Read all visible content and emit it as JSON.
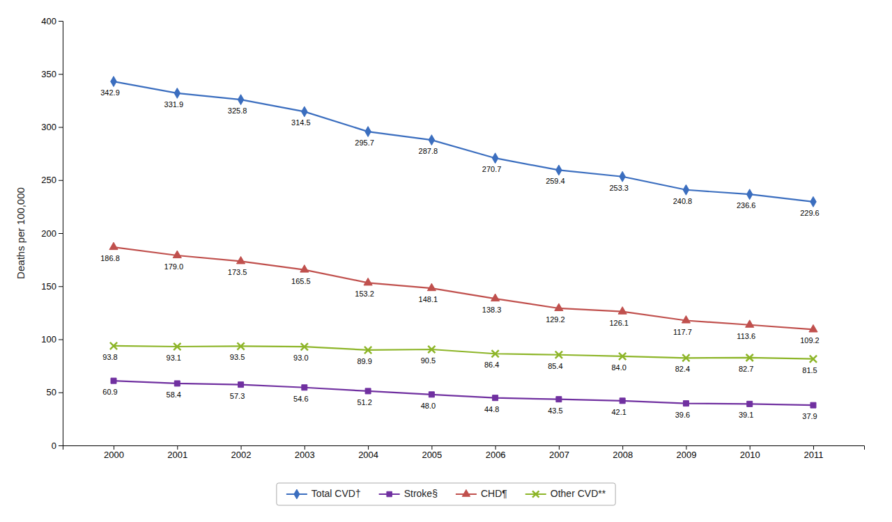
{
  "chart_data": {
    "type": "line",
    "ylabel": "Deaths per 100,000",
    "x": [
      2000,
      2001,
      2002,
      2003,
      2004,
      2005,
      2006,
      2007,
      2008,
      2009,
      2010,
      2011
    ],
    "xlim": [
      1999.2,
      2011.8
    ],
    "xticks": [
      2000,
      2001,
      2002,
      2003,
      2004,
      2005,
      2006,
      2007,
      2008,
      2009,
      2010,
      2011
    ],
    "ylim": [
      0,
      400
    ],
    "yticks": [
      0,
      50,
      100,
      150,
      200,
      250,
      300,
      350,
      400
    ],
    "grid": false,
    "legend": "bottom",
    "data_labels": true,
    "series": [
      {
        "name": "Total CVD†",
        "color": "#3B6EBF",
        "marker": "diamond",
        "values": [
          342.9,
          331.9,
          325.8,
          314.5,
          295.7,
          287.8,
          270.7,
          259.4,
          253.3,
          240.8,
          236.6,
          229.6
        ],
        "value_labels": [
          "342.9",
          "331.9",
          "325.8",
          "314.5",
          "295.7",
          "287.8",
          "270.7",
          "259.4",
          "253.3",
          "240.8",
          "236.6",
          "229.6"
        ]
      },
      {
        "name": "Stroke§",
        "color": "#7030A0",
        "marker": "square",
        "values": [
          60.9,
          58.4,
          57.3,
          54.6,
          51.2,
          48.0,
          44.8,
          43.5,
          42.1,
          39.6,
          39.1,
          37.9
        ],
        "value_labels": [
          "60.9",
          "58.4",
          "57.3",
          "54.6",
          "51.2",
          "48.0",
          "44.8",
          "43.5",
          "42.1",
          "39.6",
          "39.1",
          "37.9"
        ]
      },
      {
        "name": "CHD¶",
        "color": "#C0504D",
        "marker": "triangle",
        "values": [
          186.8,
          179.0,
          173.5,
          165.5,
          153.2,
          148.1,
          138.3,
          129.2,
          126.1,
          117.7,
          113.6,
          109.2
        ],
        "value_labels": [
          "186.8",
          "179.0",
          "173.5",
          "165.5",
          "153.2",
          "148.1",
          "138.3",
          "129.2",
          "126.1",
          "117.7",
          "113.6",
          "109.2"
        ]
      },
      {
        "name": "Other CVD**",
        "color": "#8DB528",
        "marker": "x",
        "values": [
          93.8,
          93.1,
          93.5,
          93.0,
          89.9,
          90.5,
          86.4,
          85.4,
          84.0,
          82.4,
          82.7,
          81.5
        ],
        "value_labels": [
          "93.8",
          "93.1",
          "93.5",
          "93.0",
          "89.9",
          "90.5",
          "86.4",
          "85.4",
          "84.0",
          "82.4",
          "82.7",
          "81.5"
        ]
      }
    ]
  }
}
